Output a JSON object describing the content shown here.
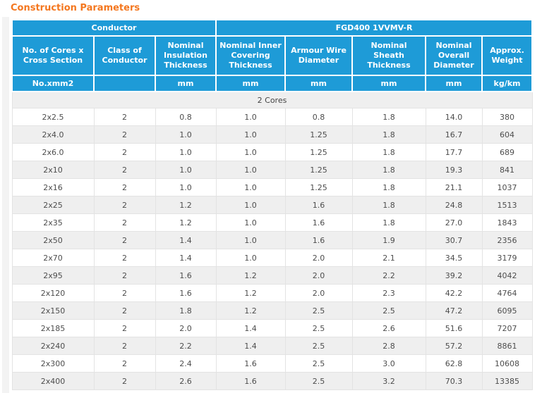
{
  "page": {
    "title": "Construction Parameters"
  },
  "theme": {
    "header_blue": "#1E9BD7",
    "title_orange": "#F4771F",
    "row_alt_gray": "#EFEFEF",
    "border_gray": "#E3E3E3",
    "body_text": "#4D4D4D"
  },
  "table": {
    "groups": [
      {
        "label": "Conductor",
        "colspan": 3
      },
      {
        "label": "FGD400 1VVMV-R",
        "colspan": 5
      }
    ],
    "columns": [
      {
        "label": "No. of Cores x Cross Section",
        "unit": "No.xmm2"
      },
      {
        "label": "Class of Conductor",
        "unit": ""
      },
      {
        "label": "Nominal Insulation Thickness",
        "unit": "mm"
      },
      {
        "label": "Nominal Inner Covering Thickness",
        "unit": "mm"
      },
      {
        "label": "Armour Wire Diameter",
        "unit": "mm"
      },
      {
        "label": "Nominal Sheath Thickness",
        "unit": "mm"
      },
      {
        "label": "Nominal Overall Diameter",
        "unit": "mm"
      },
      {
        "label": "Approx. Weight",
        "unit": "kg/km"
      }
    ],
    "section": "2 Cores",
    "rows": [
      [
        "2x2.5",
        "2",
        "0.8",
        "1.0",
        "0.8",
        "1.8",
        "14.0",
        "380"
      ],
      [
        "2x4.0",
        "2",
        "1.0",
        "1.0",
        "1.25",
        "1.8",
        "16.7",
        "604"
      ],
      [
        "2x6.0",
        "2",
        "1.0",
        "1.0",
        "1.25",
        "1.8",
        "17.7",
        "689"
      ],
      [
        "2x10",
        "2",
        "1.0",
        "1.0",
        "1.25",
        "1.8",
        "19.3",
        "841"
      ],
      [
        "2x16",
        "2",
        "1.0",
        "1.0",
        "1.25",
        "1.8",
        "21.1",
        "1037"
      ],
      [
        "2x25",
        "2",
        "1.2",
        "1.0",
        "1.6",
        "1.8",
        "24.8",
        "1513"
      ],
      [
        "2x35",
        "2",
        "1.2",
        "1.0",
        "1.6",
        "1.8",
        "27.0",
        "1843"
      ],
      [
        "2x50",
        "2",
        "1.4",
        "1.0",
        "1.6",
        "1.9",
        "30.7",
        "2356"
      ],
      [
        "2x70",
        "2",
        "1.4",
        "1.0",
        "2.0",
        "2.1",
        "34.5",
        "3179"
      ],
      [
        "2x95",
        "2",
        "1.6",
        "1.2",
        "2.0",
        "2.2",
        "39.2",
        "4042"
      ],
      [
        "2x120",
        "2",
        "1.6",
        "1.2",
        "2.0",
        "2.3",
        "42.2",
        "4764"
      ],
      [
        "2x150",
        "2",
        "1.8",
        "1.2",
        "2.5",
        "2.5",
        "47.2",
        "6095"
      ],
      [
        "2x185",
        "2",
        "2.0",
        "1.4",
        "2.5",
        "2.6",
        "51.6",
        "7207"
      ],
      [
        "2x240",
        "2",
        "2.2",
        "1.4",
        "2.5",
        "2.8",
        "57.2",
        "8861"
      ],
      [
        "2x300",
        "2",
        "2.4",
        "1.6",
        "2.5",
        "3.0",
        "62.8",
        "10608"
      ],
      [
        "2x400",
        "2",
        "2.6",
        "1.6",
        "2.5",
        "3.2",
        "70.3",
        "13385"
      ]
    ]
  }
}
